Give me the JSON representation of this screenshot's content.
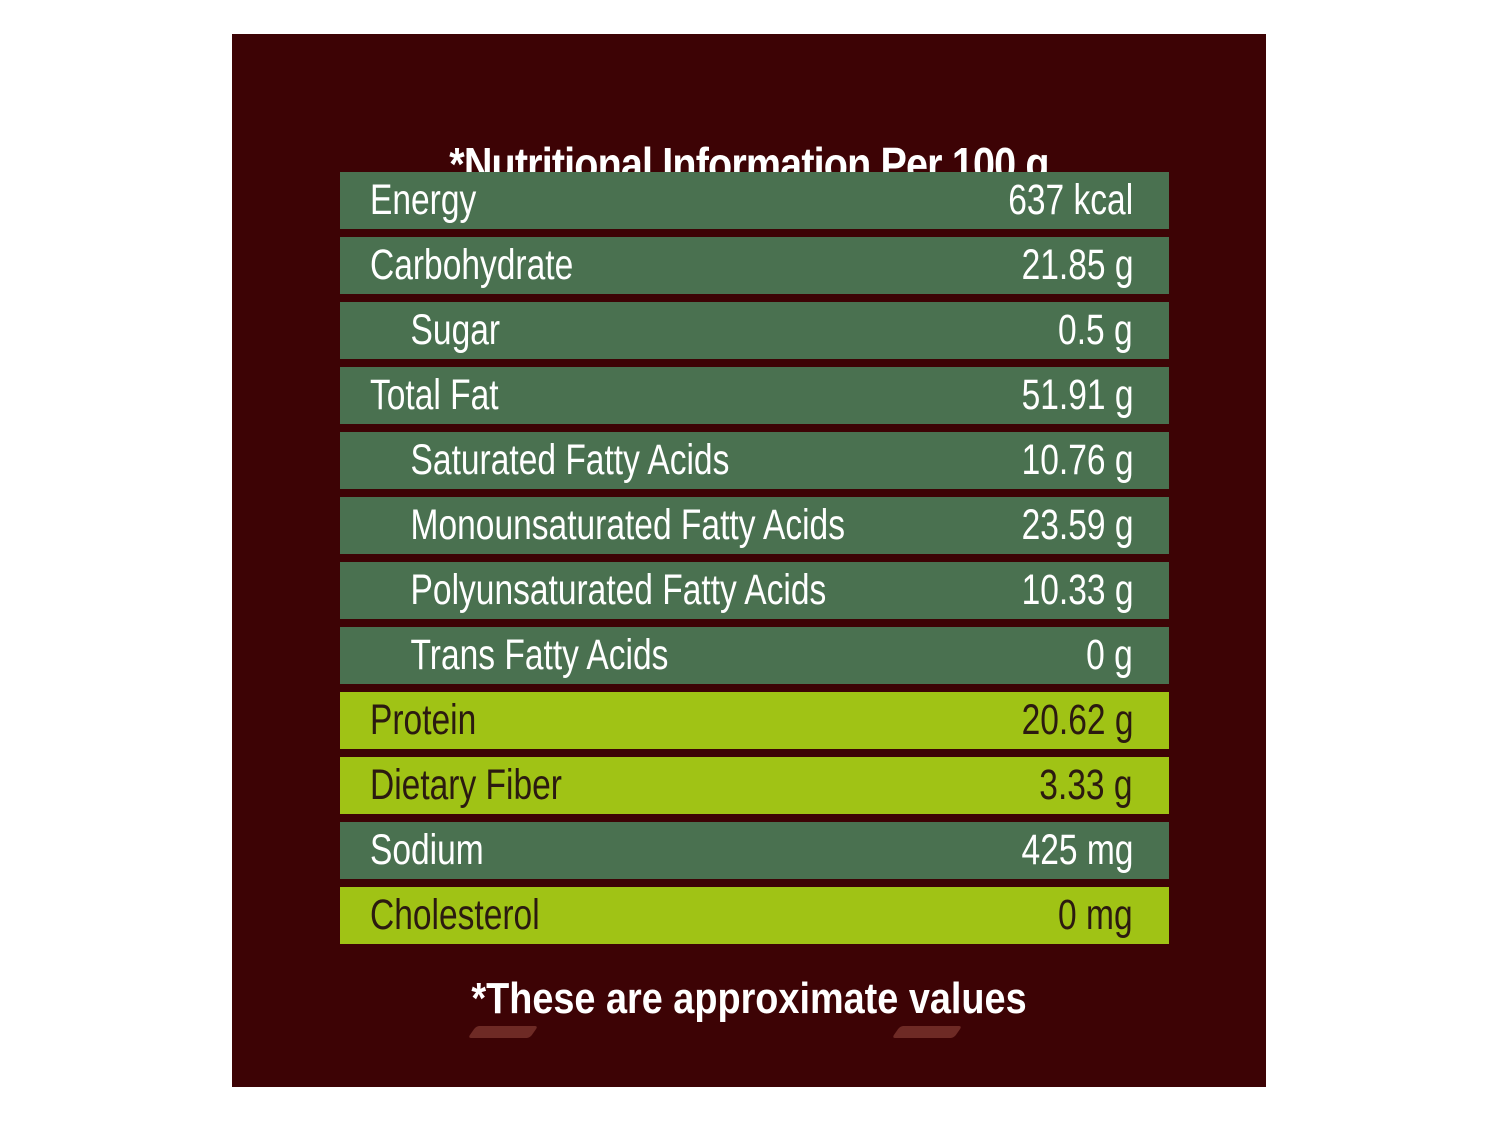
{
  "title": "*Nutritional Information Per 100 g",
  "rows": [
    {
      "label": "Energy",
      "value": "637 kcal",
      "style": "dark",
      "indent": false
    },
    {
      "label": "Carbohydrate",
      "value": "21.85 g",
      "style": "dark",
      "indent": false
    },
    {
      "label": "Sugar",
      "value": "0.5 g",
      "style": "dark",
      "indent": true
    },
    {
      "label": "Total Fat",
      "value": "51.91 g",
      "style": "dark",
      "indent": false
    },
    {
      "label": "Saturated Fatty Acids",
      "value": "10.76 g",
      "style": "dark",
      "indent": true
    },
    {
      "label": "Monounsaturated Fatty Acids",
      "value": "23.59 g",
      "style": "dark",
      "indent": true
    },
    {
      "label": "Polyunsaturated Fatty Acids",
      "value": "10.33 g",
      "style": "dark",
      "indent": true
    },
    {
      "label": "Trans Fatty Acids",
      "value": "0 g",
      "style": "dark",
      "indent": true
    },
    {
      "label": "Protein",
      "value": "20.62 g",
      "style": "lime",
      "indent": false
    },
    {
      "label": "Dietary Fiber",
      "value": "3.33 g",
      "style": "lime",
      "indent": false
    },
    {
      "label": "Sodium",
      "value": "425 mg",
      "style": "dark",
      "indent": false
    },
    {
      "label": "Cholesterol",
      "value": "0 mg",
      "style": "lime",
      "indent": false
    }
  ],
  "footnote": "*These are approximate values",
  "colors": {
    "panel_background": "#3d0305",
    "dark_row": "#4a7150",
    "lime_row": "#a0c315",
    "text_light": "#ffffff",
    "text_dark": "#2b1a10"
  }
}
